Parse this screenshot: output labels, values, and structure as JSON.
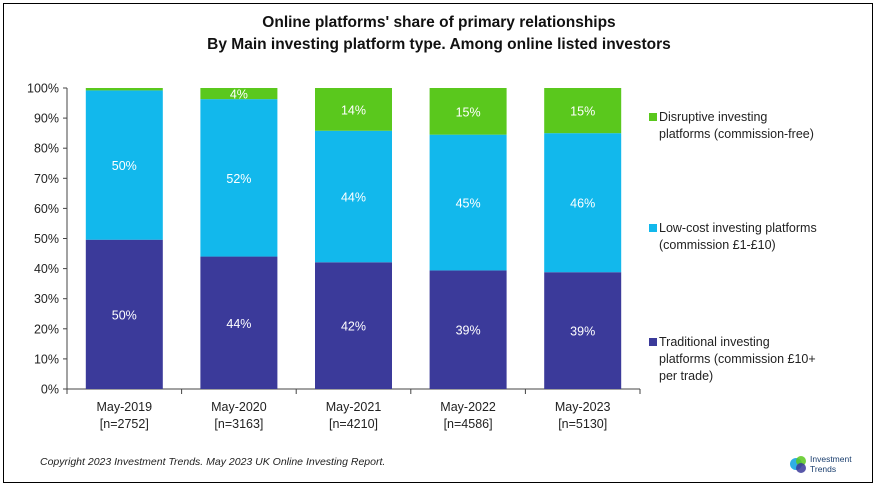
{
  "chart_data": {
    "type": "bar",
    "stacked": true,
    "title": "Online platforms' share of primary relationships",
    "subtitle": "By Main investing platform type. Among online listed investors",
    "categories": [
      "May-2019",
      "May-2020",
      "May-2021",
      "May-2022",
      "May-2023"
    ],
    "category_sublabels": [
      "[n=2752]",
      "[n=3163]",
      "[n=4210]",
      "[n=4586]",
      "[n=5130]"
    ],
    "ylim": [
      0,
      100
    ],
    "yticks": [
      "0%",
      "10%",
      "20%",
      "30%",
      "40%",
      "50%",
      "60%",
      "70%",
      "80%",
      "90%",
      "100%"
    ],
    "series": [
      {
        "name": "Traditional investing platforms (commission £10+ per trade)",
        "color": "#3b3a9a",
        "values": [
          49.6,
          44,
          42.1,
          39.4,
          38.8
        ],
        "labels": [
          "50%",
          "44%",
          "42%",
          "39%",
          "39%"
        ]
      },
      {
        "name": "Low-cost investing platforms (commission £1-£10)",
        "color": "#12b8ec",
        "values": [
          49.6,
          52.3,
          43.7,
          45.1,
          46.2
        ],
        "labels": [
          "50%",
          "52%",
          "44%",
          "45%",
          "46%"
        ]
      },
      {
        "name": "Disruptive investing platforms (commission-free)",
        "color": "#5ac81d",
        "values": [
          0.8,
          3.7,
          14.2,
          15.5,
          15
        ],
        "labels": [
          "",
          "4%",
          "14%",
          "15%",
          "15%"
        ]
      }
    ],
    "legend": [
      {
        "text": "Disruptive investing\nplatforms (commission-free)",
        "color": "#5ac81d"
      },
      {
        "text": "Low-cost investing platforms\n(commission £1-£10)",
        "color": "#12b8ec"
      },
      {
        "text": "Traditional investing\nplatforms (commission £10+\nper trade)",
        "color": "#3b3a9a"
      }
    ],
    "legend_position": "right",
    "grid": false
  },
  "footer": {
    "copyright": "Copyright 2023 Investment Trends. May 2023 UK Online Investing Report.",
    "logo_text": "Investment\nTrends"
  }
}
